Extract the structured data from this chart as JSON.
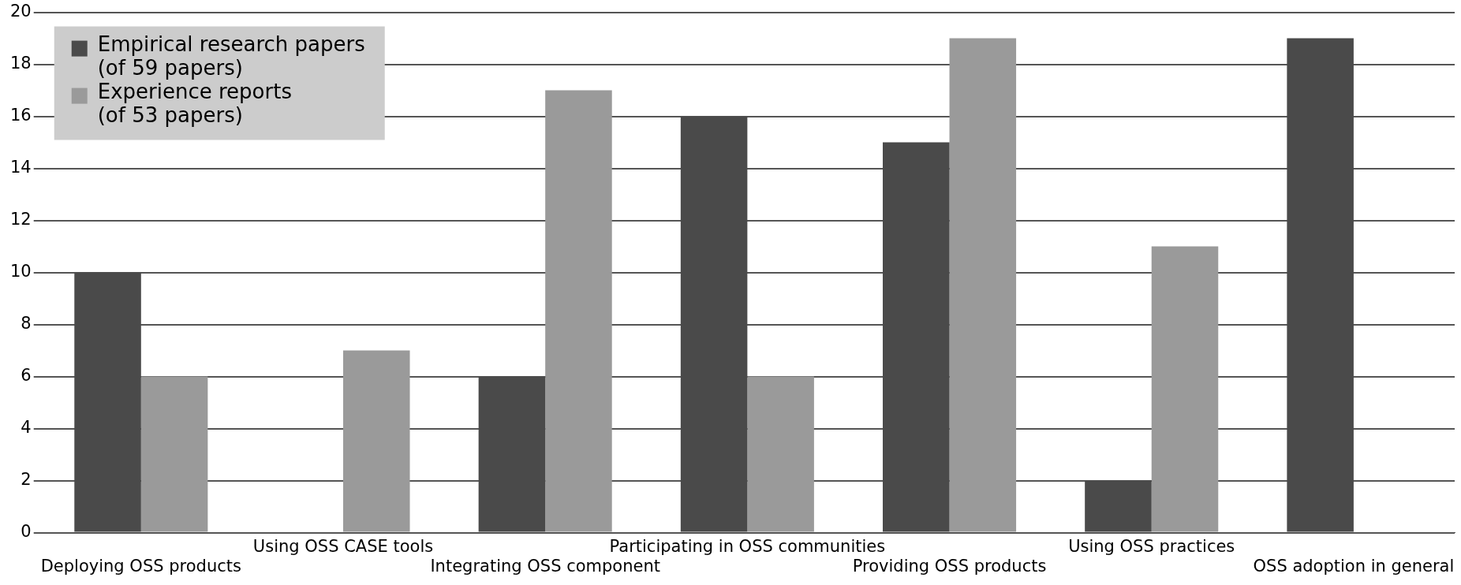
{
  "chart_data": {
    "type": "bar",
    "categories": [
      "Deploying OSS products",
      "Using OSS CASE tools",
      "Integrating OSS component",
      "Participating in OSS communities",
      "Providing OSS products",
      "Using OSS practices",
      "OSS adoption in general"
    ],
    "series": [
      {
        "name": "Empirical research papers\n(of 59 papers)",
        "color": "#4a4a4a",
        "values": [
          10,
          0,
          6,
          16,
          15,
          2,
          19
        ]
      },
      {
        "name": "Experience reports\n(of 53 papers)",
        "color": "#9a9a9a",
        "values": [
          6,
          7,
          17,
          6,
          19,
          11,
          0
        ]
      }
    ],
    "ylim": [
      0,
      20
    ],
    "yticks": [
      0,
      2,
      4,
      6,
      8,
      10,
      12,
      14,
      16,
      18,
      20
    ],
    "grid": "y",
    "legend": "top left"
  }
}
